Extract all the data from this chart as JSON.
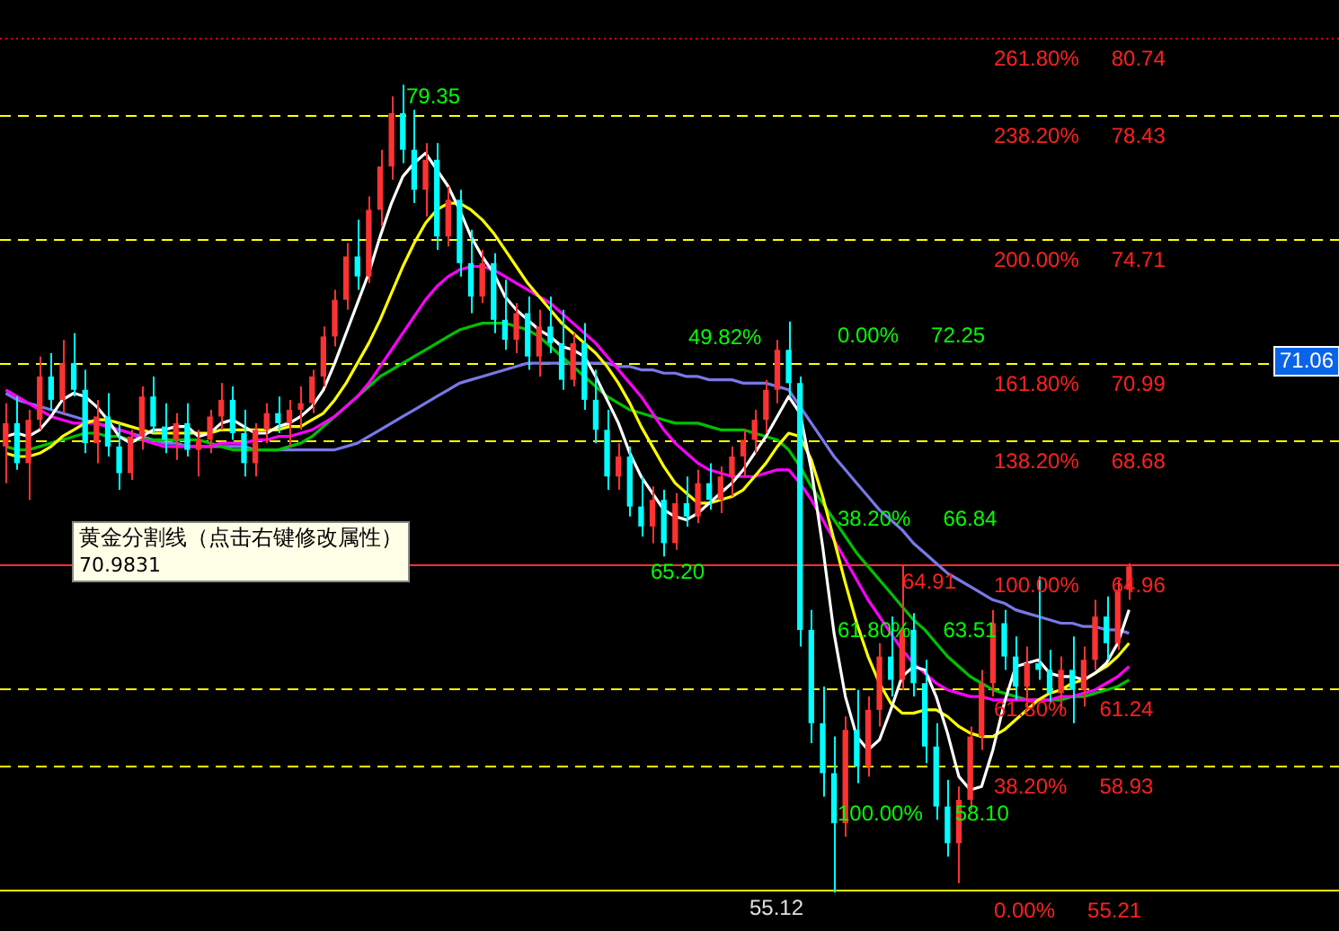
{
  "chart_data": {
    "type": "candlestick",
    "categories": [
      null,
      null,
      null,
      null,
      null,
      null,
      null,
      null,
      null,
      null,
      null,
      null,
      null,
      null,
      null,
      null,
      null,
      null,
      null,
      null,
      null,
      null,
      null,
      null,
      null,
      null,
      null,
      null,
      null,
      null,
      null,
      null,
      null,
      null,
      null,
      null,
      null,
      null,
      null,
      null,
      null,
      null,
      null,
      null,
      null,
      null,
      null,
      null,
      null,
      null,
      null,
      null,
      null,
      null,
      null,
      null,
      null,
      null,
      null,
      null,
      null,
      null,
      null,
      null,
      null,
      null,
      null,
      null,
      null,
      null,
      null,
      null,
      null,
      null,
      null,
      null,
      null,
      null,
      null,
      null,
      null,
      null,
      null,
      null,
      null,
      null,
      null,
      null,
      null,
      null,
      null,
      null,
      null,
      null,
      null,
      null,
      null,
      null,
      null,
      null,
      null,
      null,
      null,
      null,
      null,
      null,
      null,
      null,
      null,
      null,
      null,
      null,
      null,
      null,
      null,
      null,
      null,
      null
    ],
    "ohlc": [
      [
        68.5,
        69.8,
        67.4,
        69.2
      ],
      [
        69.2,
        70.0,
        67.8,
        68.0
      ],
      [
        68.0,
        69.6,
        66.9,
        69.3
      ],
      [
        69.3,
        71.2,
        69.0,
        70.6
      ],
      [
        70.6,
        71.3,
        69.6,
        69.9
      ],
      [
        69.9,
        71.7,
        69.5,
        71.0
      ],
      [
        71.0,
        71.9,
        70.0,
        70.2
      ],
      [
        70.2,
        70.8,
        68.3,
        68.6
      ],
      [
        68.6,
        69.9,
        68.0,
        69.4
      ],
      [
        69.4,
        70.1,
        68.2,
        68.5
      ],
      [
        68.5,
        69.2,
        67.2,
        67.7
      ],
      [
        67.7,
        69.0,
        67.5,
        68.8
      ],
      [
        68.8,
        70.3,
        68.4,
        70.0
      ],
      [
        70.0,
        70.6,
        68.9,
        69.1
      ],
      [
        69.1,
        69.8,
        68.3,
        68.7
      ],
      [
        68.7,
        69.5,
        68.1,
        69.2
      ],
      [
        69.2,
        69.8,
        68.2,
        68.4
      ],
      [
        68.4,
        69.0,
        67.6,
        68.7
      ],
      [
        68.7,
        69.6,
        68.3,
        69.4
      ],
      [
        69.4,
        70.4,
        69.0,
        69.9
      ],
      [
        69.9,
        70.3,
        68.7,
        68.9
      ],
      [
        68.9,
        69.6,
        67.6,
        68.0
      ],
      [
        68.0,
        69.2,
        67.6,
        69.0
      ],
      [
        69.0,
        69.8,
        68.6,
        69.5
      ],
      [
        69.5,
        70.0,
        68.9,
        69.2
      ],
      [
        69.2,
        69.9,
        68.5,
        69.6
      ],
      [
        69.6,
        70.3,
        69.0,
        69.8
      ],
      [
        69.8,
        70.8,
        69.5,
        70.6
      ],
      [
        70.6,
        72.1,
        70.3,
        71.8
      ],
      [
        71.8,
        73.2,
        71.5,
        72.9
      ],
      [
        72.9,
        74.6,
        72.6,
        74.2
      ],
      [
        74.2,
        75.3,
        73.2,
        73.6
      ],
      [
        73.6,
        76.0,
        73.4,
        75.6
      ],
      [
        75.6,
        77.4,
        75.1,
        76.9
      ],
      [
        76.9,
        79.0,
        76.5,
        78.5
      ],
      [
        78.5,
        79.35,
        77.0,
        77.4
      ],
      [
        77.4,
        78.6,
        75.8,
        76.2
      ],
      [
        76.2,
        77.6,
        75.4,
        77.1
      ],
      [
        77.1,
        77.6,
        74.4,
        74.8
      ],
      [
        74.8,
        76.3,
        74.5,
        75.9
      ],
      [
        75.9,
        76.2,
        73.6,
        74.0
      ],
      [
        74.0,
        75.0,
        72.5,
        73.0
      ],
      [
        73.0,
        74.4,
        72.8,
        74.0
      ],
      [
        74.0,
        74.3,
        71.9,
        72.3
      ],
      [
        72.3,
        73.5,
        71.4,
        71.7
      ],
      [
        71.7,
        72.8,
        71.3,
        72.5
      ],
      [
        72.5,
        73.0,
        70.8,
        71.2
      ],
      [
        71.2,
        72.6,
        70.6,
        72.1
      ],
      [
        72.1,
        73.0,
        71.3,
        71.6
      ],
      [
        71.6,
        72.6,
        70.2,
        70.5
      ],
      [
        70.5,
        71.9,
        70.3,
        71.6
      ],
      [
        71.6,
        72.2,
        69.6,
        69.9
      ],
      [
        69.9,
        70.8,
        68.6,
        69.0
      ],
      [
        69.0,
        69.6,
        67.2,
        67.6
      ],
      [
        67.6,
        68.6,
        67.2,
        68.2
      ],
      [
        68.2,
        68.5,
        66.4,
        66.7
      ],
      [
        66.7,
        67.6,
        65.8,
        66.1
      ],
      [
        66.1,
        67.3,
        65.6,
        66.9
      ],
      [
        66.9,
        67.2,
        65.2,
        65.6
      ],
      [
        65.6,
        67.1,
        65.4,
        66.8
      ],
      [
        66.8,
        67.6,
        66.1,
        66.4
      ],
      [
        66.4,
        67.8,
        66.2,
        67.4
      ],
      [
        67.4,
        68.0,
        66.6,
        66.9
      ],
      [
        66.9,
        67.9,
        66.5,
        67.6
      ],
      [
        67.6,
        68.5,
        67.0,
        68.2
      ],
      [
        68.2,
        69.0,
        67.6,
        68.7
      ],
      [
        68.7,
        69.6,
        68.3,
        69.3
      ],
      [
        69.3,
        70.5,
        68.9,
        70.2
      ],
      [
        70.2,
        71.7,
        69.8,
        71.4
      ],
      [
        71.4,
        72.25,
        70.0,
        70.4
      ],
      [
        70.4,
        70.6,
        62.5,
        63.0
      ],
      [
        63.0,
        63.6,
        59.6,
        60.2
      ],
      [
        60.2,
        61.3,
        58.0,
        58.7
      ],
      [
        58.7,
        59.8,
        55.12,
        57.2
      ],
      [
        57.2,
        60.4,
        56.8,
        60.0
      ],
      [
        60.0,
        61.2,
        58.4,
        58.9
      ],
      [
        58.9,
        61.0,
        58.6,
        60.6
      ],
      [
        60.6,
        62.6,
        60.1,
        62.2
      ],
      [
        62.2,
        63.4,
        61.0,
        61.5
      ],
      [
        61.5,
        64.91,
        61.2,
        63.0
      ],
      [
        63.0,
        63.5,
        61.0,
        61.4
      ],
      [
        61.4,
        62.1,
        59.0,
        59.5
      ],
      [
        59.5,
        60.2,
        57.3,
        57.7
      ],
      [
        57.7,
        58.5,
        56.2,
        56.6
      ],
      [
        56.6,
        58.3,
        55.4,
        57.9
      ],
      [
        57.9,
        60.1,
        57.6,
        59.8
      ],
      [
        59.8,
        61.8,
        59.4,
        61.4
      ],
      [
        61.4,
        63.6,
        61.0,
        63.2
      ],
      [
        63.2,
        63.6,
        61.8,
        62.2
      ],
      [
        62.2,
        62.8,
        60.9,
        61.3
      ],
      [
        61.3,
        62.5,
        60.6,
        62.0
      ],
      [
        62.0,
        64.6,
        61.5,
        61.8
      ],
      [
        61.8,
        62.4,
        60.8,
        61.1
      ],
      [
        61.1,
        62.2,
        60.6,
        61.8
      ],
      [
        61.8,
        62.8,
        60.2,
        61.2
      ],
      [
        61.2,
        62.5,
        60.7,
        62.1
      ],
      [
        62.1,
        63.9,
        61.8,
        63.4
      ],
      [
        63.4,
        64.0,
        62.1,
        62.6
      ],
      [
        62.6,
        64.5,
        62.4,
        64.2
      ],
      [
        64.2,
        65.0,
        63.9,
        64.9
      ],
      null,
      null,
      null,
      null,
      null,
      null,
      null,
      null,
      null,
      null,
      null,
      null,
      null,
      null,
      null,
      null,
      null,
      null
    ],
    "colors": [
      "#ff3232",
      "#00ffff",
      "#ff3232",
      "#ff3232",
      "#00ffff",
      "#ff3232",
      "#00ffff",
      "#00ffff",
      "#ff3232",
      "#00ffff",
      "#00ffff",
      "#ff3232",
      "#ff3232",
      "#00ffff",
      "#00ffff",
      "#ff3232",
      "#00ffff",
      "#ff3232",
      "#ff3232",
      "#ff3232",
      "#00ffff",
      "#00ffff",
      "#ff3232",
      "#ff3232",
      "#00ffff",
      "#ff3232",
      "#ff3232",
      "#ff3232",
      "#ff3232",
      "#ff3232",
      "#ff3232",
      "#00ffff",
      "#ff3232",
      "#ff3232",
      "#ff3232",
      "#00ffff",
      "#00ffff",
      "#ff3232",
      "#00ffff",
      "#ff3232",
      "#00ffff",
      "#00ffff",
      "#ff3232",
      "#00ffff",
      "#00ffff",
      "#ff3232",
      "#00ffff",
      "#ff3232",
      "#00ffff",
      "#00ffff",
      "#ff3232",
      "#00ffff",
      "#00ffff",
      "#00ffff",
      "#ff3232",
      "#00ffff",
      "#00ffff",
      "#ff3232",
      "#00ffff",
      "#ff3232",
      "#00ffff",
      "#ff3232",
      "#00ffff",
      "#ff3232",
      "#ff3232",
      "#ff3232",
      "#ff3232",
      "#ff3232",
      "#ff3232",
      "#00ffff",
      "#00ffff",
      "#00ffff",
      "#00ffff",
      "#00ffff",
      "#ff3232",
      "#00ffff",
      "#ff3232",
      "#ff3232",
      "#00ffff",
      "#ff3232",
      "#00ffff",
      "#00ffff",
      "#00ffff",
      "#00ffff",
      "#ff3232",
      "#ff3232",
      "#ff3232",
      "#ff3232",
      "#00ffff",
      "#00ffff",
      "#ff3232",
      "#00ffff",
      "#00ffff",
      "#ff3232",
      "#00ffff",
      "#ff3232",
      "#ff3232",
      "#00ffff",
      "#ff3232",
      "#ff3232",
      null,
      null,
      null,
      null,
      null,
      null,
      null,
      null,
      null,
      null,
      null,
      null,
      null,
      null,
      null,
      null,
      null,
      null
    ],
    "series": [
      {
        "type": "line",
        "color": "#ffffff",
        "values": [
          68.8,
          68.9,
          68.8,
          69.0,
          69.4,
          69.9,
          70.1,
          70.0,
          69.7,
          69.3,
          68.8,
          68.6,
          68.8,
          69.0,
          69.0,
          69.1,
          69.1,
          68.8,
          68.9,
          69.2,
          69.3,
          69.1,
          68.9,
          68.9,
          69.1,
          69.2,
          69.4,
          69.7,
          70.2,
          71.0,
          71.9,
          72.8,
          73.7,
          74.8,
          75.8,
          76.6,
          77.0,
          77.3,
          76.8,
          76.3,
          75.6,
          74.8,
          74.2,
          73.7,
          73.0,
          72.6,
          72.3,
          72.0,
          71.8,
          71.5,
          71.4,
          71.2,
          70.6,
          69.9,
          69.2,
          68.3,
          67.6,
          67.1,
          66.6,
          66.4,
          66.3,
          66.5,
          66.8,
          67.1,
          67.4,
          67.8,
          68.3,
          68.8,
          69.4,
          70.0,
          69.5,
          67.8,
          65.5,
          62.9,
          61.0,
          59.8,
          59.4,
          59.7,
          60.6,
          61.6,
          61.9,
          61.8,
          61.0,
          59.9,
          58.6,
          58.2,
          58.3,
          59.4,
          60.8,
          61.9,
          62.0,
          62.1,
          61.7,
          61.6,
          61.6,
          61.5,
          61.7,
          62.0,
          62.6,
          63.6,
          null,
          null,
          null,
          null,
          null,
          null,
          null,
          null,
          null,
          null,
          null,
          null,
          null,
          null,
          null,
          null,
          null,
          null
        ]
      },
      {
        "type": "line",
        "color": "#ffff00",
        "values": [
          68.3,
          68.2,
          68.2,
          68.3,
          68.5,
          68.8,
          69.0,
          69.2,
          69.3,
          69.3,
          69.2,
          69.1,
          69.0,
          68.9,
          68.9,
          68.9,
          68.9,
          68.9,
          68.9,
          69.0,
          69.0,
          69.0,
          69.0,
          69.0,
          69.0,
          69.1,
          69.1,
          69.3,
          69.5,
          69.9,
          70.4,
          71.0,
          71.6,
          72.3,
          73.1,
          73.9,
          74.6,
          75.2,
          75.6,
          75.8,
          75.8,
          75.6,
          75.3,
          74.9,
          74.4,
          73.9,
          73.4,
          73.0,
          72.6,
          72.2,
          71.9,
          71.6,
          71.3,
          70.9,
          70.4,
          69.8,
          69.1,
          68.5,
          67.9,
          67.4,
          67.1,
          66.8,
          66.8,
          66.9,
          67.0,
          67.2,
          67.6,
          68.0,
          68.5,
          68.9,
          68.8,
          68.1,
          67.0,
          65.7,
          64.4,
          63.2,
          62.2,
          61.4,
          60.8,
          60.5,
          60.5,
          60.6,
          60.6,
          60.4,
          60.1,
          59.9,
          59.8,
          59.8,
          60.0,
          60.3,
          60.6,
          60.9,
          61.1,
          61.2,
          61.4,
          61.5,
          61.7,
          61.9,
          62.2,
          62.6,
          null,
          null,
          null,
          null,
          null,
          null,
          null,
          null,
          null,
          null,
          null,
          null,
          null,
          null,
          null,
          null,
          null,
          null
        ]
      },
      {
        "type": "line",
        "color": "#ff00ff",
        "values": [
          70.2,
          70.0,
          69.8,
          69.6,
          69.4,
          69.3,
          69.2,
          69.2,
          69.2,
          69.1,
          69.0,
          68.9,
          68.7,
          68.6,
          68.5,
          68.5,
          68.5,
          68.5,
          68.5,
          68.6,
          68.6,
          68.6,
          68.7,
          68.7,
          68.8,
          68.8,
          68.9,
          69.0,
          69.2,
          69.4,
          69.7,
          70.0,
          70.4,
          70.9,
          71.4,
          71.9,
          72.4,
          72.9,
          73.3,
          73.6,
          73.8,
          73.9,
          73.9,
          73.8,
          73.6,
          73.4,
          73.2,
          73.0,
          72.8,
          72.5,
          72.2,
          71.9,
          71.6,
          71.2,
          70.8,
          70.4,
          70.0,
          69.5,
          69.0,
          68.6,
          68.3,
          68.0,
          67.8,
          67.7,
          67.6,
          67.6,
          67.6,
          67.7,
          67.8,
          67.8,
          67.4,
          66.9,
          66.3,
          65.7,
          65.1,
          64.5,
          63.9,
          63.4,
          62.9,
          62.4,
          62.0,
          61.7,
          61.4,
          61.2,
          61.1,
          61.0,
          61.0,
          60.9,
          60.9,
          60.9,
          60.9,
          60.9,
          60.9,
          61.0,
          61.0,
          61.1,
          61.2,
          61.4,
          61.6,
          61.9,
          null,
          null,
          null,
          null,
          null,
          null,
          null,
          null,
          null,
          null,
          null,
          null,
          null,
          null,
          null,
          null,
          null,
          null
        ]
      },
      {
        "type": "line",
        "color": "#00c000",
        "values": [
          68.5,
          68.4,
          68.4,
          68.5,
          68.6,
          68.7,
          68.8,
          68.9,
          68.9,
          68.8,
          68.8,
          68.7,
          68.7,
          68.7,
          68.7,
          68.7,
          68.7,
          68.7,
          68.6,
          68.5,
          68.4,
          68.4,
          68.4,
          68.4,
          68.4,
          68.5,
          68.6,
          68.8,
          69.1,
          69.4,
          69.7,
          70.0,
          70.3,
          70.6,
          70.8,
          71.0,
          71.2,
          71.4,
          71.6,
          71.8,
          72.0,
          72.1,
          72.2,
          72.2,
          72.2,
          72.1,
          72.0,
          71.8,
          71.5,
          71.2,
          70.9,
          70.6,
          70.3,
          70.0,
          69.8,
          69.6,
          69.5,
          69.4,
          69.3,
          69.2,
          69.2,
          69.2,
          69.1,
          69.0,
          69.0,
          69.0,
          68.9,
          68.8,
          68.7,
          68.4,
          67.9,
          67.3,
          66.8,
          66.3,
          65.8,
          65.3,
          64.9,
          64.5,
          64.1,
          63.7,
          63.3,
          63.0,
          62.6,
          62.2,
          61.9,
          61.6,
          61.4,
          61.2,
          61.1,
          61.0,
          60.9,
          60.9,
          60.9,
          60.9,
          61.0,
          61.0,
          61.1,
          61.2,
          61.3,
          61.5,
          null,
          null,
          null,
          null,
          null,
          null,
          null,
          null,
          null,
          null,
          null,
          null,
          null,
          null,
          null,
          null,
          null,
          null
        ]
      },
      {
        "type": "line",
        "color": "#7878e8",
        "values": [
          70.1,
          69.9,
          69.8,
          69.7,
          69.6,
          69.5,
          69.4,
          69.3,
          69.2,
          69.1,
          69.0,
          68.9,
          68.8,
          68.7,
          68.6,
          68.6,
          68.5,
          68.5,
          68.5,
          68.5,
          68.5,
          68.5,
          68.4,
          68.4,
          68.4,
          68.4,
          68.4,
          68.4,
          68.4,
          68.4,
          68.5,
          68.6,
          68.8,
          69.0,
          69.2,
          69.4,
          69.6,
          69.8,
          70.0,
          70.2,
          70.4,
          70.5,
          70.6,
          70.7,
          70.8,
          70.9,
          71.0,
          71.0,
          71.0,
          71.0,
          71.0,
          71.0,
          71.0,
          71.0,
          70.9,
          70.9,
          70.8,
          70.8,
          70.7,
          70.7,
          70.6,
          70.6,
          70.5,
          70.5,
          70.5,
          70.4,
          70.4,
          70.4,
          70.3,
          70.2,
          69.7,
          69.2,
          68.7,
          68.2,
          67.8,
          67.4,
          67.0,
          66.6,
          66.3,
          66.0,
          65.6,
          65.3,
          65.0,
          64.7,
          64.5,
          64.3,
          64.1,
          63.9,
          63.8,
          63.6,
          63.5,
          63.4,
          63.3,
          63.2,
          63.2,
          63.1,
          63.1,
          63.0,
          63.0,
          62.9,
          null,
          null,
          null,
          null,
          null,
          null,
          null,
          null,
          null,
          null,
          null,
          null,
          null,
          null,
          null,
          null,
          null,
          null
        ]
      }
    ],
    "tick_labels": false,
    "legend": false,
    "ref_lines": [
      {
        "axis": "y",
        "value": 80.74,
        "label": "261.80%   80.74",
        "color": "#ff0000",
        "line_style": "dotted"
      },
      {
        "axis": "y",
        "value": 78.43,
        "label": "238.20%   78.43",
        "color": "#ffff00",
        "line_style": "dashed"
      },
      {
        "axis": "y",
        "value": 74.71,
        "label": "200.00%   74.71",
        "color": "#ffff00",
        "line_style": "dashed"
      },
      {
        "axis": "y",
        "value": 70.99,
        "label": "161.80%   70.99",
        "color": "#ffff00",
        "line_style": "dashed"
      },
      {
        "axis": "y",
        "value": 68.68,
        "label": "138.20%   68.68",
        "color": "#ffff00",
        "line_style": "dashed"
      },
      {
        "axis": "y",
        "value": 64.96,
        "label": "100.00%   64.96",
        "color": "#ff3030",
        "line_style": "solid"
      },
      {
        "axis": "y",
        "value": 61.24,
        "label": "61.80%   61.24",
        "color": "#ffff00",
        "line_style": "dashed"
      },
      {
        "axis": "y",
        "value": 58.93,
        "label": "38.20%   58.93",
        "color": "#ffff00",
        "line_style": "dashed"
      },
      {
        "axis": "y",
        "value": 55.21,
        "label": "0.00%   55.21",
        "color": "#ffff00",
        "line_style": "solid"
      }
    ],
    "annotations": [
      {
        "text": "65.20",
        "y": 65.2
      },
      {
        "text": "64.91",
        "y": 64.91
      },
      {
        "text": "55.12",
        "y": 55.12
      },
      {
        "text": "71.06",
        "y": 71.06
      },
      "79.35",
      "49.82%",
      "0.00%   72.25",
      "38.20%   66.84",
      "61.80%   63.51",
      "100.00%   58.10",
      "黄金分割线（点击右键修改属性）",
      "70.9831"
    ]
  }
}
